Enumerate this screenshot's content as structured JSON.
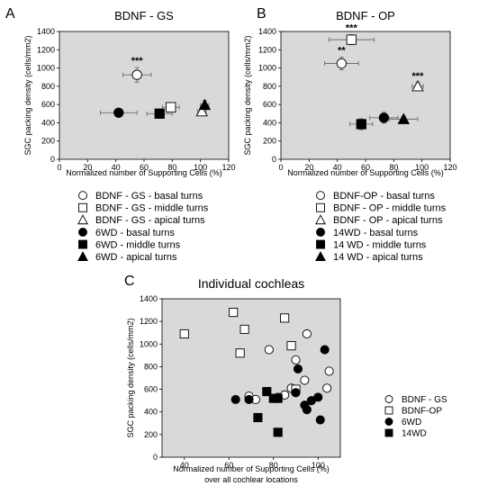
{
  "figure": {
    "palette": {
      "plot_bg": "#d9d9d9",
      "open_fill": "#ffffff",
      "solid_fill": "#000000",
      "stroke": "#000000",
      "error_bar": "#6e6e6e"
    }
  },
  "chart_data": [
    {
      "panel_letter": "A",
      "type": "scatter",
      "title": "BDNF - GS",
      "xlabel": "Normalized number of Supporting Cells (%)",
      "ylabel": "SGC packing density   (cells/mm2)",
      "xlim": [
        0,
        120
      ],
      "ylim": [
        0,
        1400
      ],
      "xticks": [
        0,
        20,
        40,
        60,
        80,
        100,
        120
      ],
      "yticks": [
        0,
        200,
        400,
        600,
        800,
        1000,
        1200,
        1400
      ],
      "grid": false,
      "legend_position": "below",
      "series": [
        {
          "name": "BDNF - GS - basal turns",
          "marker": "circle",
          "fill": "open",
          "points": [
            {
              "x": 55,
              "y": 925,
              "xerr": 10,
              "yerr": 80,
              "annotation": "***"
            }
          ]
        },
        {
          "name": "BDNF - GS - middle turns",
          "marker": "square",
          "fill": "open",
          "points": [
            {
              "x": 79,
              "y": 570,
              "xerr": 6,
              "yerr": 40,
              "annotation": ""
            }
          ]
        },
        {
          "name": "BDNF - GS - apical turns",
          "marker": "triangle",
          "fill": "open",
          "points": [
            {
              "x": 101,
              "y": 525,
              "xerr": 3,
              "yerr": 35,
              "annotation": ""
            }
          ]
        },
        {
          "name": "6WD - basal turns",
          "marker": "circle",
          "fill": "solid",
          "points": [
            {
              "x": 42,
              "y": 510,
              "xerr": 13,
              "yerr": 35,
              "annotation": ""
            }
          ]
        },
        {
          "name": "6WD - middle turns",
          "marker": "square",
          "fill": "solid",
          "points": [
            {
              "x": 71,
              "y": 500,
              "xerr": 9,
              "yerr": 35,
              "annotation": ""
            }
          ]
        },
        {
          "name": "6WD - apical turns",
          "marker": "triangle",
          "fill": "solid",
          "points": [
            {
              "x": 103,
              "y": 595,
              "xerr": 3,
              "yerr": 50,
              "annotation": ""
            }
          ]
        }
      ]
    },
    {
      "panel_letter": "B",
      "type": "scatter",
      "title": "BDNF - OP",
      "xlabel": "Normalized number of Supporting Cells (%)",
      "ylabel": "SGC packing density   (cells/mm2)",
      "xlim": [
        0,
        120
      ],
      "ylim": [
        0,
        1400
      ],
      "xticks": [
        0,
        20,
        40,
        60,
        80,
        100,
        120
      ],
      "yticks": [
        0,
        200,
        400,
        600,
        800,
        1000,
        1200,
        1400
      ],
      "grid": false,
      "legend_position": "below",
      "series": [
        {
          "name": "BDNF-OP - basal turns",
          "marker": "circle",
          "fill": "open",
          "points": [
            {
              "x": 43,
              "y": 1050,
              "xerr": 12,
              "yerr": 70,
              "annotation": "**"
            }
          ]
        },
        {
          "name": "BDNF - OP - middle turns",
          "marker": "square",
          "fill": "open",
          "points": [
            {
              "x": 50,
              "y": 1310,
              "xerr": 16,
              "yerr": 55,
              "annotation": "***"
            }
          ]
        },
        {
          "name": "BDNF - OP - apical turns",
          "marker": "triangle",
          "fill": "open",
          "points": [
            {
              "x": 97,
              "y": 800,
              "xerr": 4,
              "yerr": 40,
              "annotation": "***"
            }
          ]
        },
        {
          "name": "14WD - basal turns",
          "marker": "circle",
          "fill": "solid",
          "points": [
            {
              "x": 73,
              "y": 455,
              "xerr": 10,
              "yerr": 60,
              "annotation": ""
            }
          ]
        },
        {
          "name": "14 WD - middle turns",
          "marker": "square",
          "fill": "solid",
          "points": [
            {
              "x": 57,
              "y": 385,
              "xerr": 8,
              "yerr": 60,
              "annotation": ""
            }
          ]
        },
        {
          "name": "14 WD - apical turns",
          "marker": "triangle",
          "fill": "solid",
          "points": [
            {
              "x": 87,
              "y": 440,
              "xerr": 10,
              "yerr": 30,
              "annotation": ""
            }
          ]
        }
      ]
    },
    {
      "panel_letter": "C",
      "type": "scatter",
      "title": "Individual cochleas",
      "xlabel": "Normalized number of Supporting Cells (%)",
      "xlabel2": "over all cochlear locations",
      "ylabel": "SGC packing density  (cells/mm2)",
      "xlim": [
        30,
        110
      ],
      "ylim": [
        0,
        1400
      ],
      "xticks": [
        40,
        60,
        80,
        100
      ],
      "yticks": [
        0,
        200,
        400,
        600,
        800,
        1000,
        1200,
        1400
      ],
      "grid": false,
      "legend_position": "right",
      "series": [
        {
          "name": "BDNF - GS",
          "marker": "circle",
          "fill": "open",
          "points": [
            {
              "x": 78,
              "y": 950
            },
            {
              "x": 95,
              "y": 1090
            },
            {
              "x": 90,
              "y": 860
            },
            {
              "x": 105,
              "y": 760
            },
            {
              "x": 104,
              "y": 610
            },
            {
              "x": 94,
              "y": 680
            },
            {
              "x": 88,
              "y": 610
            },
            {
              "x": 85,
              "y": 550
            },
            {
              "x": 82,
              "y": 530
            },
            {
              "x": 69,
              "y": 540
            },
            {
              "x": 72,
              "y": 510
            }
          ]
        },
        {
          "name": "BDNF-OP",
          "marker": "square",
          "fill": "open",
          "points": [
            {
              "x": 62,
              "y": 1280
            },
            {
              "x": 85,
              "y": 1230
            },
            {
              "x": 67,
              "y": 1130
            },
            {
              "x": 40,
              "y": 1090
            },
            {
              "x": 88,
              "y": 985
            },
            {
              "x": 65,
              "y": 920
            },
            {
              "x": 90,
              "y": 600
            }
          ]
        },
        {
          "name": "6WD",
          "marker": "circle",
          "fill": "solid",
          "points": [
            {
              "x": 103,
              "y": 950
            },
            {
              "x": 91,
              "y": 780
            },
            {
              "x": 100,
              "y": 530
            },
            {
              "x": 90,
              "y": 570
            },
            {
              "x": 97,
              "y": 500
            },
            {
              "x": 94,
              "y": 460
            },
            {
              "x": 95,
              "y": 420
            },
            {
              "x": 101,
              "y": 330
            },
            {
              "x": 69,
              "y": 510
            },
            {
              "x": 63,
              "y": 510
            }
          ]
        },
        {
          "name": "14WD",
          "marker": "square",
          "fill": "solid",
          "points": [
            {
              "x": 77,
              "y": 580
            },
            {
              "x": 80,
              "y": 520
            },
            {
              "x": 82,
              "y": 520
            },
            {
              "x": 73,
              "y": 350
            },
            {
              "x": 82,
              "y": 220
            }
          ]
        }
      ]
    }
  ]
}
